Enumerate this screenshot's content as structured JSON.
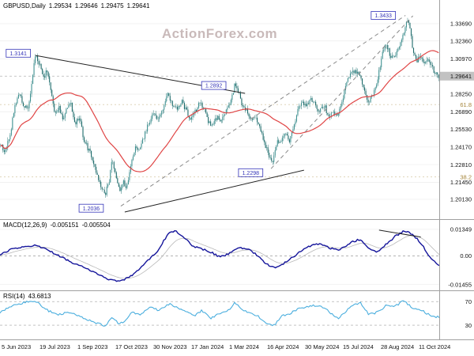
{
  "header": {
    "symbol": "GBPUSD,Daily",
    "open": "1.29534",
    "high": "1.29646",
    "low": "1.29475",
    "close": "1.29641"
  },
  "watermark": "ActionForex.com",
  "indicators": {
    "macd": {
      "name": "MACD(12,26,9)",
      "value_main": "-0.005151",
      "value_signal": "-0.005504"
    },
    "rsi": {
      "name": "RSI(14)",
      "value": "43.6813"
    }
  },
  "colors": {
    "candle_up": "#3f9292",
    "candle_down": "#1d6a6a",
    "wick": "#2b7878",
    "ma_line": "#e04545",
    "macd_line": "#15159b",
    "macd_signal": "#b9b9b9",
    "rsi_line": "#4aaede",
    "annotation": "#3434b8",
    "fib": "#a5853a",
    "watermark": "#c9baba",
    "grid": "#ececec",
    "frame": "#a0a0a0",
    "current_price_bg": "#c2c2c2",
    "dashed_trend": "#8a8a8a",
    "trend": "#222222"
  },
  "chart_data": [
    {
      "type": "candlestick",
      "symbol": "GBPUSD",
      "timeframe": "Daily",
      "ylim": [
        1.186,
        1.3552
      ],
      "current_price": 1.29641,
      "y_ticks": [
        "1.33690",
        "1.32360",
        "1.30970",
        "1.29641",
        "1.28250",
        "1.26890",
        "1.25530",
        "1.24170",
        "1.22810",
        "1.21450",
        "1.20130"
      ],
      "x_labels": [
        "5 Jun 2023",
        "19 Jul 2023",
        "1 Sep 2023",
        "17 Oct 2023",
        "30 Nov 2023",
        "17 Jan 2024",
        "1 Mar 2024",
        "16 Apr 2024",
        "30 May 2024",
        "15 Jul 2024",
        "28 Aug 2024",
        "11 Oct 2024"
      ],
      "ma_window": 45,
      "anchors": [
        [
          0.0,
          1.244
        ],
        [
          0.01,
          1.2375
        ],
        [
          0.022,
          1.252
        ],
        [
          0.032,
          1.272
        ],
        [
          0.042,
          1.284
        ],
        [
          0.052,
          1.2745
        ],
        [
          0.062,
          1.27
        ],
        [
          0.07,
          1.289
        ],
        [
          0.08,
          1.3141
        ],
        [
          0.09,
          1.304
        ],
        [
          0.098,
          1.295
        ],
        [
          0.106,
          1.301
        ],
        [
          0.115,
          1.285
        ],
        [
          0.124,
          1.268
        ],
        [
          0.133,
          1.273
        ],
        [
          0.142,
          1.262
        ],
        [
          0.152,
          1.2715
        ],
        [
          0.16,
          1.276
        ],
        [
          0.17,
          1.26
        ],
        [
          0.18,
          1.264
        ],
        [
          0.19,
          1.248
        ],
        [
          0.2,
          1.24
        ],
        [
          0.21,
          1.233
        ],
        [
          0.22,
          1.22
        ],
        [
          0.23,
          1.21
        ],
        [
          0.238,
          1.2045
        ],
        [
          0.248,
          1.216
        ],
        [
          0.255,
          1.233
        ],
        [
          0.263,
          1.219
        ],
        [
          0.272,
          1.2065
        ],
        [
          0.28,
          1.215
        ],
        [
          0.288,
          1.2105
        ],
        [
          0.298,
          1.229
        ],
        [
          0.308,
          1.242
        ],
        [
          0.318,
          1.239
        ],
        [
          0.328,
          1.251
        ],
        [
          0.338,
          1.26
        ],
        [
          0.348,
          1.269
        ],
        [
          0.358,
          1.262
        ],
        [
          0.37,
          1.271
        ],
        [
          0.382,
          1.2825
        ],
        [
          0.392,
          1.275
        ],
        [
          0.404,
          1.272
        ],
        [
          0.414,
          1.2765
        ],
        [
          0.424,
          1.27
        ],
        [
          0.434,
          1.263
        ],
        [
          0.444,
          1.269
        ],
        [
          0.454,
          1.2755
        ],
        [
          0.464,
          1.272
        ],
        [
          0.474,
          1.262
        ],
        [
          0.484,
          1.258
        ],
        [
          0.494,
          1.2645
        ],
        [
          0.504,
          1.263
        ],
        [
          0.514,
          1.2685
        ],
        [
          0.524,
          1.274
        ],
        [
          0.534,
          1.289
        ],
        [
          0.542,
          1.2855
        ],
        [
          0.552,
          1.274
        ],
        [
          0.562,
          1.27
        ],
        [
          0.572,
          1.262
        ],
        [
          0.582,
          1.265
        ],
        [
          0.592,
          1.256
        ],
        [
          0.602,
          1.246
        ],
        [
          0.613,
          1.234
        ],
        [
          0.621,
          1.2305
        ],
        [
          0.631,
          1.245
        ],
        [
          0.641,
          1.248
        ],
        [
          0.651,
          1.252
        ],
        [
          0.659,
          1.245
        ],
        [
          0.669,
          1.256
        ],
        [
          0.679,
          1.27
        ],
        [
          0.689,
          1.276
        ],
        [
          0.699,
          1.274
        ],
        [
          0.709,
          1.278
        ],
        [
          0.719,
          1.274
        ],
        [
          0.729,
          1.269
        ],
        [
          0.739,
          1.274
        ],
        [
          0.749,
          1.265
        ],
        [
          0.759,
          1.2685
        ],
        [
          0.769,
          1.264
        ],
        [
          0.779,
          1.276
        ],
        [
          0.789,
          1.29
        ],
        [
          0.799,
          1.2985
        ],
        [
          0.809,
          1.301
        ],
        [
          0.819,
          1.297
        ],
        [
          0.829,
          1.287
        ],
        [
          0.839,
          1.2765
        ],
        [
          0.849,
          1.2815
        ],
        [
          0.859,
          1.2905
        ],
        [
          0.869,
          1.31
        ],
        [
          0.879,
          1.322
        ],
        [
          0.889,
          1.313
        ],
        [
          0.899,
          1.3095
        ],
        [
          0.909,
          1.318
        ],
        [
          0.919,
          1.328
        ],
        [
          0.928,
          1.3425
        ],
        [
          0.935,
          1.333
        ],
        [
          0.942,
          1.315
        ],
        [
          0.951,
          1.3085
        ],
        [
          0.959,
          1.312
        ],
        [
          0.967,
          1.306
        ],
        [
          0.975,
          1.309
        ],
        [
          0.983,
          1.304
        ],
        [
          0.991,
          1.2995
        ],
        [
          1.0,
          1.2964
        ]
      ],
      "annotations": [
        {
          "label": "1.3141",
          "price": 1.3141,
          "t": 0.014,
          "dy": 0
        },
        {
          "label": "1.3433",
          "price": 1.3433,
          "t": 0.845,
          "dy": 0
        },
        {
          "label": "1.2892",
          "price": 1.2892,
          "t": 0.459,
          "dy": 0
        },
        {
          "label": "1.2298",
          "price": 1.2298,
          "t": 0.543,
          "dy": 13
        },
        {
          "label": "1.2036",
          "price": 1.2036,
          "t": 0.18,
          "dy": 15
        }
      ],
      "fib_levels": [
        {
          "label": "61.8",
          "price": 1.2745
        },
        {
          "label": "38.2",
          "price": 1.2185
        }
      ],
      "trendlines": [
        {
          "x1": 0.081,
          "p1": 1.3124,
          "x2": 0.558,
          "p2": 1.2831,
          "style": "solid"
        },
        {
          "x1": 0.284,
          "p1": 1.1915,
          "x2": 0.692,
          "p2": 1.2238,
          "style": "solid"
        },
        {
          "x1": 0.275,
          "p1": 1.196,
          "x2": 0.923,
          "p2": 1.3433,
          "style": "dashed"
        },
        {
          "x1": 0.617,
          "p1": 1.225,
          "x2": 0.94,
          "p2": 1.343,
          "style": "dashed"
        }
      ]
    },
    {
      "type": "line",
      "name": "MACD(12,26,9)",
      "ylim": [
        -0.0175,
        0.0187
      ],
      "y_ticks": [
        "0.01349",
        "0.00",
        "-0.01455"
      ],
      "current_main": -0.005151,
      "current_signal": -0.005504,
      "anchors": [
        [
          0.0,
          0.0005
        ],
        [
          0.03,
          0.0038
        ],
        [
          0.06,
          0.005
        ],
        [
          0.08,
          0.0052
        ],
        [
          0.1,
          0.004
        ],
        [
          0.13,
          0.0005
        ],
        [
          0.16,
          -0.003
        ],
        [
          0.19,
          -0.0055
        ],
        [
          0.22,
          -0.009
        ],
        [
          0.25,
          -0.012
        ],
        [
          0.275,
          -0.0128
        ],
        [
          0.3,
          -0.01
        ],
        [
          0.33,
          -0.004
        ],
        [
          0.36,
          0.003
        ],
        [
          0.385,
          0.012
        ],
        [
          0.4,
          0.0128
        ],
        [
          0.42,
          0.009
        ],
        [
          0.44,
          0.005
        ],
        [
          0.46,
          0.0035
        ],
        [
          0.48,
          0.002
        ],
        [
          0.5,
          -0.0005
        ],
        [
          0.52,
          0.001
        ],
        [
          0.545,
          0.0042
        ],
        [
          0.565,
          0.0035
        ],
        [
          0.585,
          0.0005
        ],
        [
          0.605,
          -0.004
        ],
        [
          0.625,
          -0.0062
        ],
        [
          0.645,
          -0.004
        ],
        [
          0.67,
          0.0
        ],
        [
          0.7,
          0.0048
        ],
        [
          0.73,
          0.0062
        ],
        [
          0.75,
          0.004
        ],
        [
          0.77,
          0.0028
        ],
        [
          0.8,
          0.007
        ],
        [
          0.82,
          0.0085
        ],
        [
          0.84,
          0.004
        ],
        [
          0.86,
          0.002
        ],
        [
          0.88,
          0.006
        ],
        [
          0.9,
          0.01
        ],
        [
          0.92,
          0.0128
        ],
        [
          0.94,
          0.011
        ],
        [
          0.96,
          0.006
        ],
        [
          0.98,
          -0.001
        ],
        [
          1.0,
          -0.0052
        ]
      ],
      "trendline": {
        "x1": 0.863,
        "v1": 0.0131,
        "x2": 0.958,
        "v2": 0.0096
      }
    },
    {
      "type": "line",
      "name": "RSI(14)",
      "ylim": [
        6,
        89
      ],
      "levels": [
        70,
        30
      ],
      "current": 43.6813,
      "anchors": [
        [
          0.0,
          52
        ],
        [
          0.02,
          60
        ],
        [
          0.04,
          66
        ],
        [
          0.08,
          72
        ],
        [
          0.1,
          58
        ],
        [
          0.13,
          48
        ],
        [
          0.16,
          52
        ],
        [
          0.19,
          42
        ],
        [
          0.22,
          34
        ],
        [
          0.24,
          28
        ],
        [
          0.255,
          45
        ],
        [
          0.27,
          32
        ],
        [
          0.285,
          38
        ],
        [
          0.3,
          52
        ],
        [
          0.32,
          48
        ],
        [
          0.345,
          62
        ],
        [
          0.36,
          55
        ],
        [
          0.385,
          66
        ],
        [
          0.4,
          60
        ],
        [
          0.42,
          56
        ],
        [
          0.44,
          45
        ],
        [
          0.46,
          55
        ],
        [
          0.48,
          42
        ],
        [
          0.5,
          50
        ],
        [
          0.52,
          55
        ],
        [
          0.535,
          68
        ],
        [
          0.55,
          58
        ],
        [
          0.57,
          50
        ],
        [
          0.59,
          44
        ],
        [
          0.61,
          32
        ],
        [
          0.625,
          30
        ],
        [
          0.64,
          45
        ],
        [
          0.66,
          50
        ],
        [
          0.68,
          58
        ],
        [
          0.7,
          62
        ],
        [
          0.73,
          64
        ],
        [
          0.75,
          52
        ],
        [
          0.77,
          42
        ],
        [
          0.8,
          62
        ],
        [
          0.82,
          68
        ],
        [
          0.84,
          48
        ],
        [
          0.86,
          52
        ],
        [
          0.88,
          64
        ],
        [
          0.9,
          62
        ],
        [
          0.92,
          72
        ],
        [
          0.94,
          58
        ],
        [
          0.96,
          55
        ],
        [
          0.98,
          46
        ],
        [
          1.0,
          43.7
        ]
      ]
    }
  ]
}
